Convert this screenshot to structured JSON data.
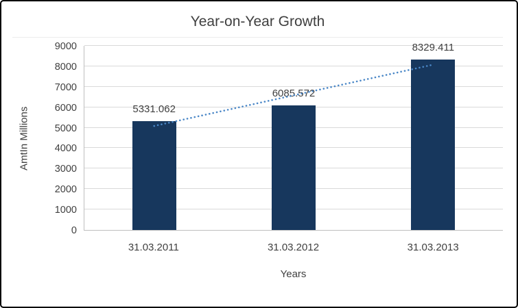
{
  "chart_data": {
    "type": "bar",
    "title": "Year-on-Year Growth",
    "xlabel": "Years",
    "ylabel": "AmtIn Millions",
    "categories": [
      "31.03.2011",
      "31.03.2012",
      "31.03.2013"
    ],
    "values": [
      5331.062,
      6085.572,
      8329.411
    ],
    "data_labels": [
      "5331.062",
      "6085.572",
      "8329.411"
    ],
    "ylim": [
      0,
      9000
    ],
    "ytick_step": 1000,
    "grid": true,
    "legend_position": "none",
    "bar_color": "#17375D",
    "text_color": "#404040",
    "gridline_color": "#D9D9D9",
    "trendline": {
      "type": "linear",
      "style": "dotted",
      "color": "#4A87C7",
      "values": [
        5082.8,
        6582.0,
        8081.2
      ]
    }
  }
}
